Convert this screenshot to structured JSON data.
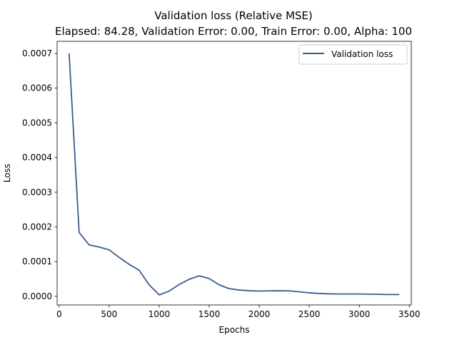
{
  "chart_data": {
    "type": "line",
    "title": "Validation loss (Relative MSE)",
    "subtitle": "Elapsed: 84.28, Validation Error: 0.00, Train Error: 0.00, Alpha: 100",
    "xlabel": "Epochs",
    "ylabel": "Loss",
    "xlim": [
      -20,
      3520
    ],
    "ylim": [
      -2.5e-05,
      0.000735
    ],
    "xticks": [
      0,
      500,
      1000,
      1500,
      2000,
      2500,
      3000,
      3500
    ],
    "xtick_labels": [
      "0",
      "500",
      "1000",
      "1500",
      "2000",
      "2500",
      "3000",
      "3500"
    ],
    "yticks": [
      0,
      0.0001,
      0.0002,
      0.0003,
      0.0004,
      0.0005,
      0.0006,
      0.0007
    ],
    "ytick_labels": [
      "0.0000",
      "0.0001",
      "0.0002",
      "0.0003",
      "0.0004",
      "0.0005",
      "0.0006",
      "0.0007"
    ],
    "grid": false,
    "legend_position": "top-right",
    "series": [
      {
        "name": "Validation loss",
        "color": "#3b5b8c",
        "x": [
          100,
          200,
          300,
          400,
          500,
          600,
          700,
          800,
          900,
          1000,
          1100,
          1200,
          1300,
          1400,
          1500,
          1600,
          1700,
          1800,
          1900,
          2000,
          2100,
          2200,
          2300,
          2400,
          2500,
          2600,
          2700,
          2800,
          2900,
          3000,
          3100,
          3200,
          3300,
          3400
        ],
        "y": [
          0.0007,
          0.000184,
          0.000148,
          0.000142,
          0.000134,
          0.000112,
          9.2e-05,
          7.5e-05,
          3.3e-05,
          4e-06,
          1.5e-05,
          3.4e-05,
          4.9e-05,
          5.9e-05,
          5.1e-05,
          3.3e-05,
          2.2e-05,
          1.8e-05,
          1.6e-05,
          1.5e-05,
          1.55e-05,
          1.6e-05,
          1.55e-05,
          1.3e-05,
          1e-05,
          8e-06,
          7e-06,
          6.5e-06,
          6.5e-06,
          6.5e-06,
          6e-06,
          5.5e-06,
          5e-06,
          5e-06
        ]
      }
    ]
  }
}
